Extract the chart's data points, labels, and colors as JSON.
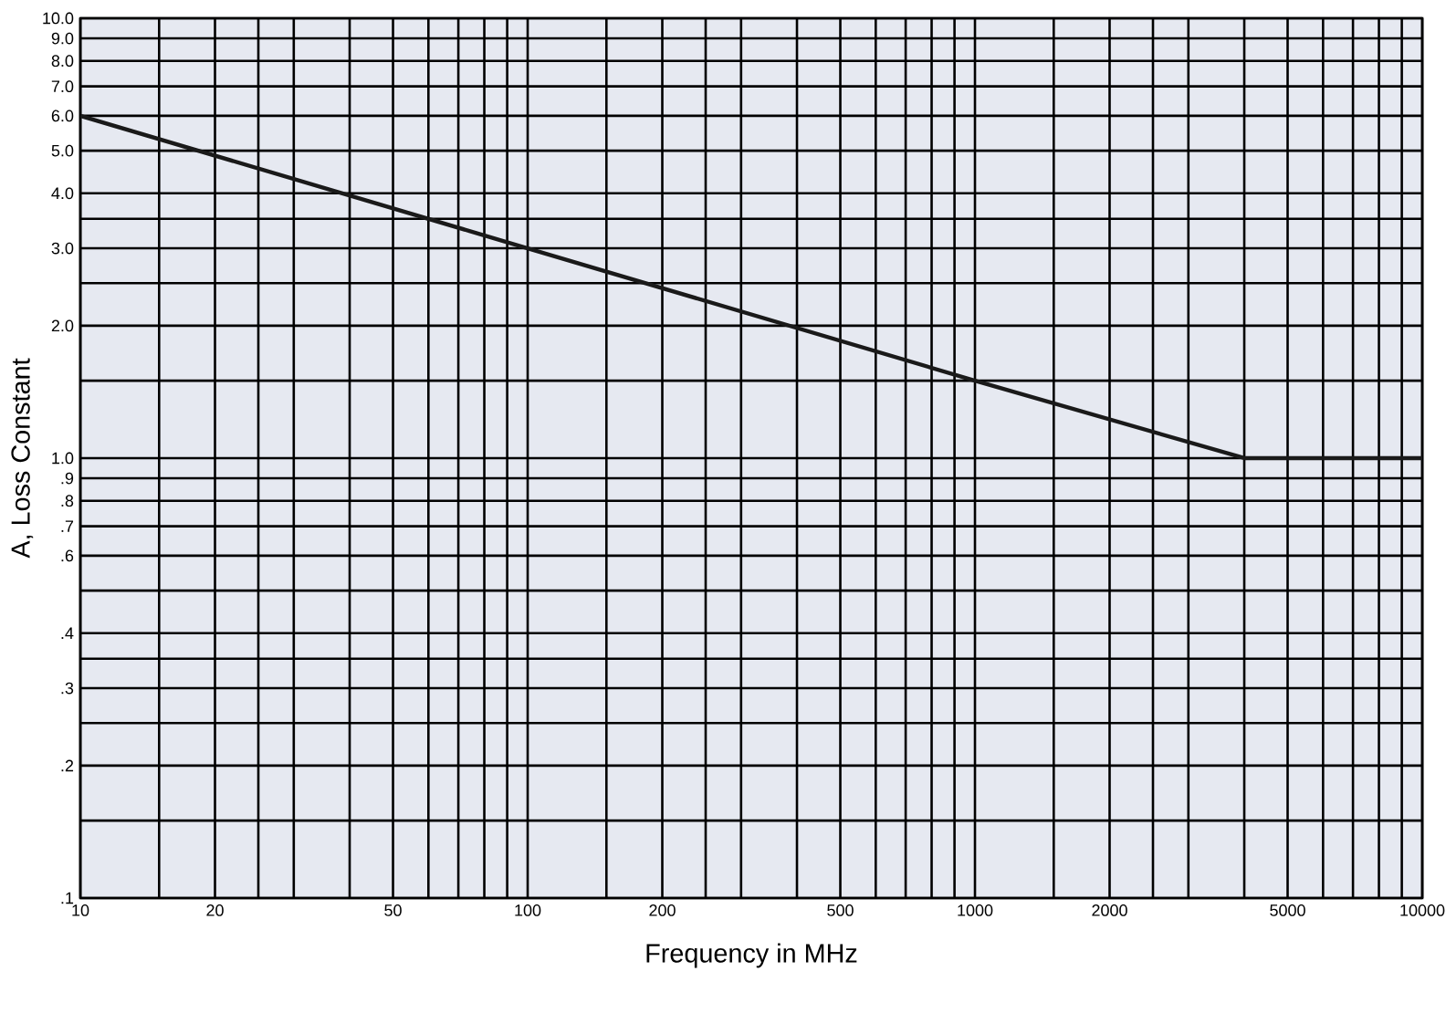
{
  "chart_data": {
    "type": "line",
    "xlabel": "Frequency in MHz",
    "ylabel": "A, Loss Constant",
    "log": "xy",
    "grid": true,
    "marker": "none",
    "line_style": "solid",
    "xlim": [
      10,
      10000
    ],
    "ylim": [
      0.1,
      10
    ],
    "xticks": [
      10,
      {
        "value": 15,
        "label": null
      },
      20,
      {
        "value": 25,
        "label": null
      },
      {
        "value": 30,
        "label": null
      },
      {
        "value": 40,
        "label": null
      },
      50,
      {
        "value": 60,
        "label": null
      },
      {
        "value": 70,
        "label": null
      },
      {
        "value": 80,
        "label": null
      },
      {
        "value": 90,
        "label": null
      },
      100,
      {
        "value": 150,
        "label": null
      },
      200,
      {
        "value": 250,
        "label": null
      },
      {
        "value": 300,
        "label": null
      },
      {
        "value": 400,
        "label": null
      },
      500,
      {
        "value": 600,
        "label": null
      },
      {
        "value": 700,
        "label": null
      },
      {
        "value": 800,
        "label": null
      },
      {
        "value": 900,
        "label": null
      },
      1000,
      {
        "value": 1500,
        "label": null
      },
      2000,
      {
        "value": 2500,
        "label": null
      },
      {
        "value": 3000,
        "label": null
      },
      {
        "value": 4000,
        "label": null
      },
      5000,
      {
        "value": 6000,
        "label": null
      },
      {
        "value": 7000,
        "label": null
      },
      {
        "value": 8000,
        "label": null
      },
      {
        "value": 9000,
        "label": null
      },
      10000
    ],
    "yticks": [
      {
        "value": 0.1,
        "label": ".1"
      },
      {
        "value": 0.15,
        "label": null
      },
      {
        "value": 0.2,
        "label": ".2"
      },
      {
        "value": 0.25,
        "label": null
      },
      {
        "value": 0.3,
        "label": ".3"
      },
      {
        "value": 0.35,
        "label": null
      },
      {
        "value": 0.4,
        "label": ".4"
      },
      {
        "value": 0.5,
        "label": null
      },
      {
        "value": 0.6,
        "label": ".6"
      },
      {
        "value": 0.7,
        "label": ".7"
      },
      {
        "value": 0.8,
        "label": ".8"
      },
      {
        "value": 0.9,
        "label": ".9"
      },
      {
        "value": 1,
        "label": "1.0"
      },
      {
        "value": 1.5,
        "label": null
      },
      {
        "value": 2,
        "label": "2.0"
      },
      {
        "value": 2.5,
        "label": null
      },
      {
        "value": 3,
        "label": "3.0"
      },
      {
        "value": 3.5,
        "label": null
      },
      {
        "value": 4,
        "label": "4.0"
      },
      {
        "value": 5,
        "label": "5.0"
      },
      {
        "value": 6,
        "label": "6.0"
      },
      {
        "value": 7,
        "label": "7.0"
      },
      {
        "value": 8,
        "label": "8.0"
      },
      {
        "value": 9,
        "label": "9.0"
      },
      {
        "value": 10,
        "label": "10.0"
      }
    ],
    "x": [
      10,
      100,
      1000,
      4000,
      10000
    ],
    "series": [
      {
        "color": "#1a1a1a",
        "values": [
          6,
          3,
          1.5,
          1,
          1
        ]
      }
    ]
  }
}
